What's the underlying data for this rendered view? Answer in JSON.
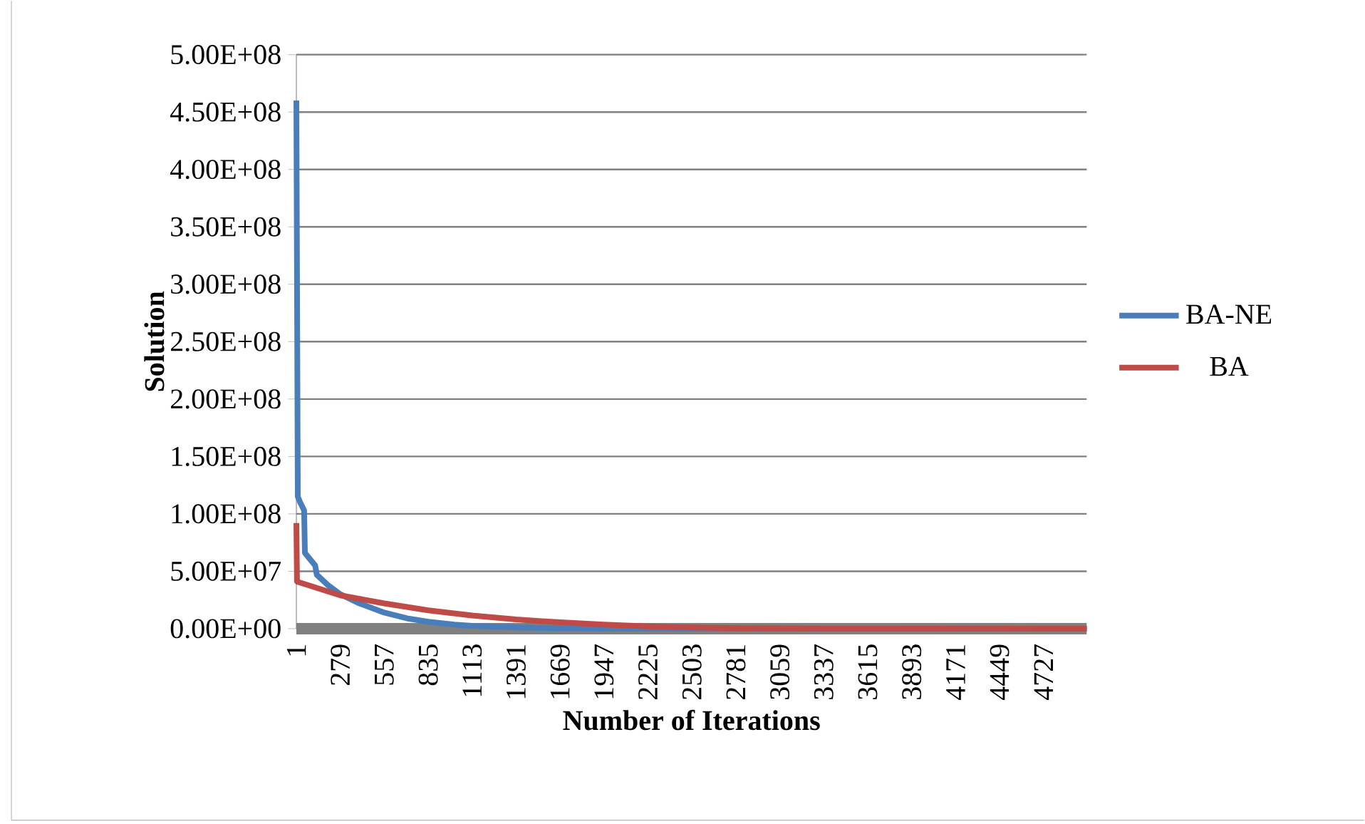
{
  "chart_data": {
    "type": "line",
    "xlabel": "Number of Iterations",
    "ylabel": "Solution",
    "xlim": [
      1,
      5000
    ],
    "xticks": [
      1,
      279,
      557,
      835,
      1113,
      1391,
      1669,
      1947,
      2225,
      2503,
      2781,
      3059,
      3337,
      3615,
      3893,
      4171,
      4449,
      4727
    ],
    "ylim": [
      0,
      500000000
    ],
    "yticks": [
      {
        "value": 0,
        "label": "0.00E+00"
      },
      {
        "value": 50000000,
        "label": "5.00E+07"
      },
      {
        "value": 100000000,
        "label": "1.00E+08"
      },
      {
        "value": 150000000,
        "label": "1.50E+08"
      },
      {
        "value": 200000000,
        "label": "2.00E+08"
      },
      {
        "value": 250000000,
        "label": "2.50E+08"
      },
      {
        "value": 300000000,
        "label": "3.00E+08"
      },
      {
        "value": 350000000,
        "label": "3.50E+08"
      },
      {
        "value": 400000000,
        "label": "4.00E+08"
      },
      {
        "value": 450000000,
        "label": "4.50E+08"
      },
      {
        "value": 500000000,
        "label": "5.00E+08"
      }
    ],
    "grid": "y",
    "legend": "right",
    "marker": "none",
    "line_style": "solid",
    "series": [
      {
        "name": "BA-NE",
        "color": "#4a7ebb",
        "x": [
          1,
          10,
          25,
          50,
          55,
          120,
          130,
          200,
          279,
          400,
          557,
          700,
          835,
          1000,
          1113,
          1391,
          1669,
          2000,
          3000,
          5000
        ],
        "values": [
          460000000,
          115000000,
          110000000,
          103000000,
          66000000,
          55000000,
          47000000,
          38000000,
          30000000,
          22000000,
          14000000,
          9000000,
          6000000,
          3500000,
          2500000,
          1000000,
          500000,
          100000,
          0,
          0
        ]
      },
      {
        "name": "BA",
        "color": "#be4b48",
        "x": [
          1,
          5,
          279,
          557,
          835,
          1113,
          1391,
          1669,
          1947,
          2225,
          2503,
          2781,
          3337,
          5000
        ],
        "values": [
          92000000,
          41000000,
          29000000,
          22000000,
          16000000,
          11500000,
          8000000,
          5500000,
          3500000,
          2000000,
          1000000,
          500000,
          100000,
          0
        ]
      }
    ]
  }
}
